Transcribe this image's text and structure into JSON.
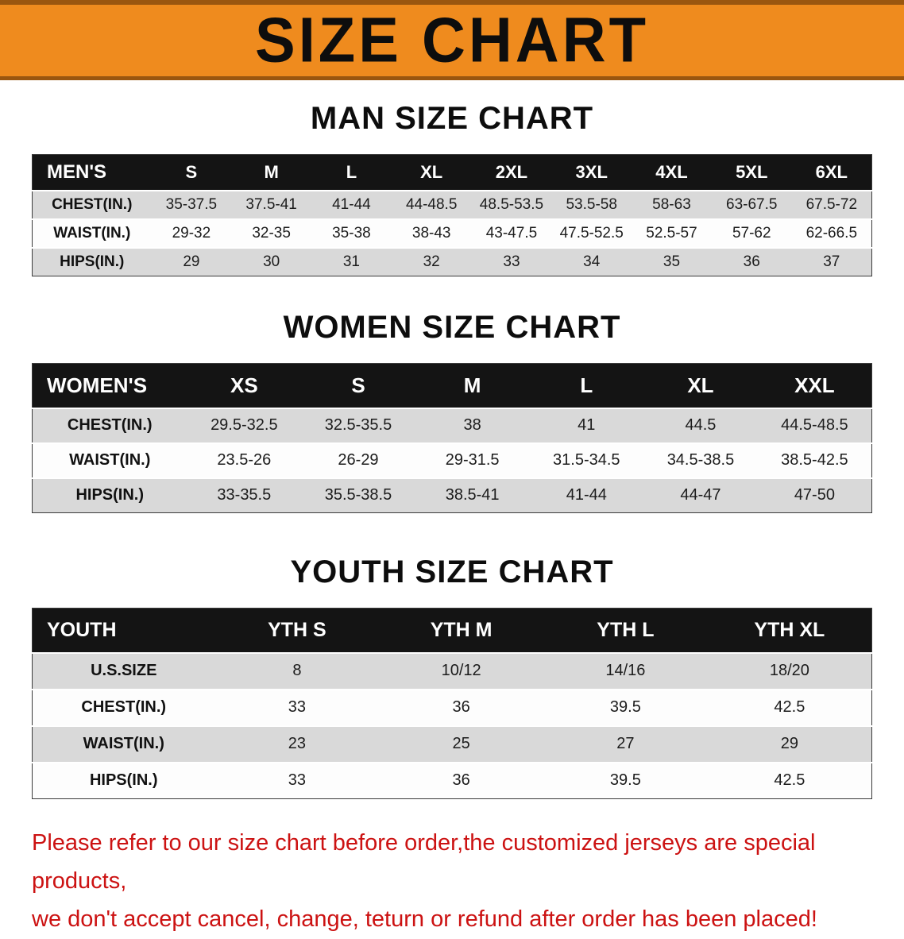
{
  "banner": {
    "title": "SIZE CHART"
  },
  "colors": {
    "banner_bg": "#ef8b1e",
    "banner_border": "#9a560f",
    "header_bg": "#141414",
    "row_alt": "#d9d9d9",
    "row_main": "#fdfdfd",
    "disclaimer": "#cc1212"
  },
  "sections": [
    {
      "id": "men",
      "heading": "MAN SIZE CHART",
      "table": {
        "header": [
          "MEN'S",
          "S",
          "M",
          "L",
          "XL",
          "2XL",
          "3XL",
          "4XL",
          "5XL",
          "6XL"
        ],
        "rows": [
          [
            "CHEST(IN.)",
            "35-37.5",
            "37.5-41",
            "41-44",
            "44-48.5",
            "48.5-53.5",
            "53.5-58",
            "58-63",
            "63-67.5",
            "67.5-72"
          ],
          [
            "WAIST(IN.)",
            "29-32",
            "32-35",
            "35-38",
            "38-43",
            "43-47.5",
            "47.5-52.5",
            "52.5-57",
            "57-62",
            "62-66.5"
          ],
          [
            "HIPS(IN.)",
            "29",
            "30",
            "31",
            "32",
            "33",
            "34",
            "35",
            "36",
            "37"
          ]
        ]
      }
    },
    {
      "id": "women",
      "heading": "WOMEN SIZE CHART",
      "table": {
        "header": [
          "WOMEN'S",
          "XS",
          "S",
          "M",
          "L",
          "XL",
          "XXL"
        ],
        "rows": [
          [
            "CHEST(IN.)",
            "29.5-32.5",
            "32.5-35.5",
            "38",
            "41",
            "44.5",
            "44.5-48.5"
          ],
          [
            "WAIST(IN.)",
            "23.5-26",
            "26-29",
            "29-31.5",
            "31.5-34.5",
            "34.5-38.5",
            "38.5-42.5"
          ],
          [
            "HIPS(IN.)",
            "33-35.5",
            "35.5-38.5",
            "38.5-41",
            "41-44",
            "44-47",
            "47-50"
          ]
        ]
      }
    },
    {
      "id": "youth",
      "heading": "YOUTH SIZE CHART",
      "table": {
        "header": [
          "YOUTH",
          "YTH S",
          "YTH M",
          "YTH L",
          "YTH XL"
        ],
        "rows": [
          [
            "U.S.SIZE",
            "8",
            "10/12",
            "14/16",
            "18/20"
          ],
          [
            "CHEST(IN.)",
            "33",
            "36",
            "39.5",
            "42.5"
          ],
          [
            "WAIST(IN.)",
            "23",
            "25",
            "27",
            "29"
          ],
          [
            "HIPS(IN.)",
            "33",
            "36",
            "39.5",
            "42.5"
          ]
        ]
      }
    }
  ],
  "disclaimer": {
    "line1": "Please refer to our size chart before order,the customized jerseys are special products,",
    "line2": "we don't accept cancel, change, teturn or refund after order has been placed!"
  }
}
